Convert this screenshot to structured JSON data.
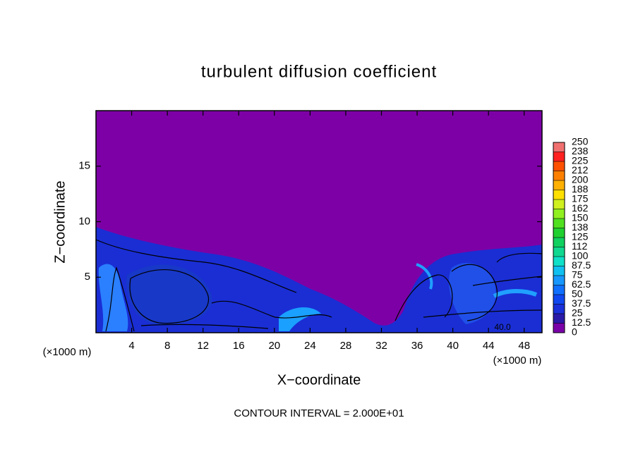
{
  "chart_data": {
    "type": "contour",
    "title": "turbulent diffusion coefficient",
    "xlabel": "X−coordinate",
    "ylabel": "Z−coordinate",
    "x_unit_label": "(×1000 m)",
    "xlim": [
      0,
      50
    ],
    "ylim": [
      0,
      20
    ],
    "xticks": [
      4,
      8,
      12,
      16,
      20,
      24,
      28,
      32,
      36,
      40,
      44,
      48
    ],
    "yticks": [
      5,
      10,
      15
    ],
    "levels": [
      0,
      12.5,
      25,
      37.5,
      50,
      62.5,
      75,
      87.5,
      100,
      {
        "value": 112.5,
        "label": "112"
      },
      125,
      {
        "value": 137.5,
        "label": "138"
      },
      150,
      {
        "value": 162.5,
        "label": "162"
      },
      175,
      {
        "value": 187.5,
        "label": "188"
      },
      200,
      {
        "value": 212.5,
        "label": "212"
      },
      225,
      {
        "value": 237.5,
        "label": "238"
      },
      250
    ],
    "colors": [
      "#7a00a8",
      "#2a1aa8",
      "#1a30d8",
      "#1048f0",
      "#1070ff",
      "#1898ff",
      "#10c0f0",
      "#10e0c8",
      "#10d890",
      "#10d060",
      "#20d030",
      "#50e020",
      "#90f020",
      "#d0f020",
      "#ffe000",
      "#ffb000",
      "#ff8000",
      "#ff5000",
      "#ff2020",
      "#f07070"
    ],
    "contour_label": "40.0",
    "footer": "CONTOUR INTERVAL = 2.000E+01"
  }
}
